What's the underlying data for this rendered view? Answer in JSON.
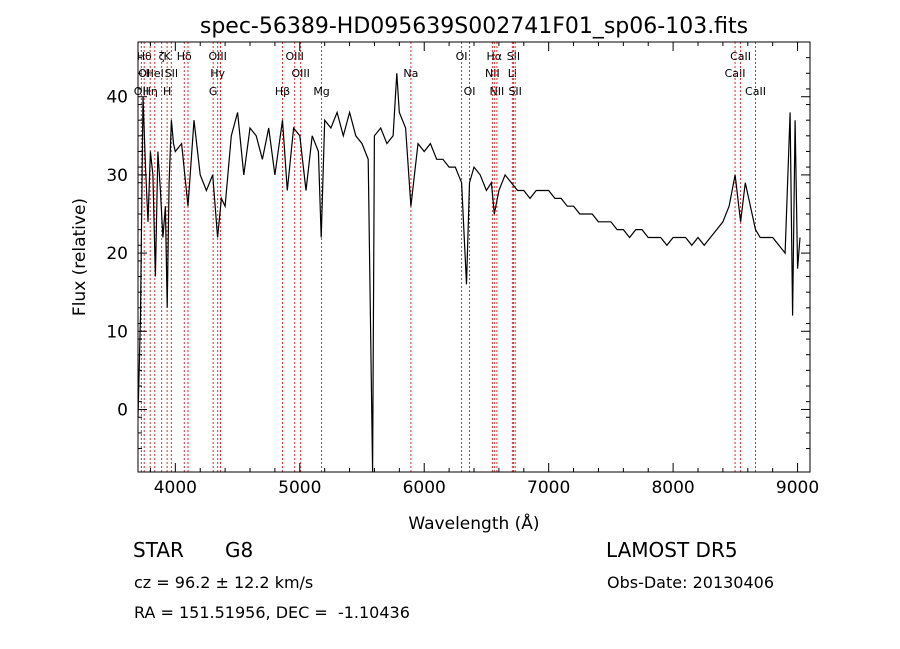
{
  "chart_data": {
    "type": "line",
    "title": "spec-56389-HD095639S002741F01_sp06-103.fits",
    "xlabel": "Wavelength (Å)",
    "ylabel": "Flux (relative)",
    "xlim": [
      3700,
      9100
    ],
    "ylim": [
      -8,
      47
    ],
    "x_ticks": [
      4000,
      5000,
      6000,
      7000,
      8000,
      9000
    ],
    "y_ticks": [
      0,
      10,
      20,
      30,
      40
    ],
    "grid": false,
    "series": [
      {
        "x": [
          3700,
          3720,
          3740,
          3760,
          3780,
          3800,
          3820,
          3840,
          3860,
          3880,
          3900,
          3920,
          3935,
          3950,
          3968,
          3985,
          4000,
          4050,
          4102,
          4150,
          4200,
          4250,
          4300,
          4340,
          4370,
          4400,
          4450,
          4500,
          4550,
          4600,
          4650,
          4700,
          4750,
          4800,
          4861,
          4900,
          4950,
          5000,
          5050,
          5100,
          5150,
          5172,
          5200,
          5250,
          5300,
          5350,
          5400,
          5450,
          5500,
          5550,
          5585,
          5600,
          5650,
          5700,
          5750,
          5780,
          5800,
          5850,
          5893,
          5950,
          6000,
          6050,
          6100,
          6150,
          6200,
          6250,
          6300,
          6340,
          6364,
          6400,
          6450,
          6500,
          6540,
          6563,
          6600,
          6650,
          6700,
          6750,
          6800,
          6850,
          6900,
          6950,
          7000,
          7050,
          7100,
          7150,
          7200,
          7250,
          7300,
          7350,
          7400,
          7450,
          7500,
          7550,
          7600,
          7650,
          7700,
          7750,
          7800,
          7850,
          7900,
          7950,
          8000,
          8050,
          8100,
          8150,
          8200,
          8250,
          8300,
          8350,
          8400,
          8450,
          8498,
          8542,
          8580,
          8662,
          8700,
          8750,
          8800,
          8850,
          8900,
          8940,
          8960,
          8980,
          9000,
          9020
        ],
        "y": [
          -1,
          12,
          40,
          31,
          24,
          33,
          30,
          17,
          33,
          28,
          22,
          26,
          13,
          29,
          37,
          34,
          33,
          34,
          26,
          37,
          30,
          28,
          30,
          22,
          27,
          26,
          35,
          38,
          30,
          36,
          35,
          32,
          36,
          30,
          37,
          28,
          36,
          35,
          28,
          35,
          33,
          22,
          37,
          36,
          38,
          35,
          38,
          35,
          34,
          32,
          -8,
          35,
          36,
          34,
          35,
          43,
          38,
          36,
          26,
          34,
          33,
          34,
          32,
          32,
          31,
          31,
          29,
          16,
          29,
          31,
          30,
          28,
          29,
          25,
          28,
          30,
          29,
          28,
          28,
          27,
          28,
          28,
          28,
          27,
          27,
          26,
          26,
          25,
          25,
          25,
          24,
          24,
          24,
          23,
          23,
          22,
          23,
          23,
          22,
          22,
          22,
          21,
          22,
          22,
          22,
          21,
          22,
          21,
          22,
          23,
          24,
          26,
          30,
          24,
          29,
          23,
          22,
          22,
          22,
          21,
          20,
          38,
          12,
          37,
          18,
          22
        ]
      }
    ],
    "line_annotations": [
      {
        "wave": 3727,
        "labels": [
          {
            "text": "OII",
            "row": 2
          }
        ]
      },
      {
        "wave": 3750,
        "labels": [
          {
            "text": "Hθ",
            "row": 0
          },
          {
            "text": "OI",
            "row": 1
          }
        ]
      },
      {
        "wave": 3798,
        "labels": [
          {
            "text": "Hη",
            "row": 2
          }
        ]
      },
      {
        "wave": 3835,
        "labels": [
          {
            "text": "HeI",
            "row": 1
          }
        ]
      },
      {
        "wave": 3890,
        "labels": [
          {
            "text": "ζ",
            "row": 0
          }
        ]
      },
      {
        "wave": 3934,
        "labels": [
          {
            "text": "K",
            "row": 0
          },
          {
            "text": "H",
            "row": 2
          }
        ]
      },
      {
        "wave": 3968,
        "labels": [
          {
            "text": "SII",
            "row": 1
          }
        ]
      },
      {
        "wave": 4072,
        "labels": [
          {
            "text": "Hδ",
            "row": 0
          }
        ]
      },
      {
        "wave": 4102,
        "labels": []
      },
      {
        "wave": 4304,
        "labels": [
          {
            "text": "G",
            "row": 2
          }
        ]
      },
      {
        "wave": 4340,
        "labels": [
          {
            "text": "OIII",
            "row": 0
          },
          {
            "text": "Hγ",
            "row": 1
          }
        ]
      },
      {
        "wave": 4363,
        "labels": []
      },
      {
        "wave": 4861,
        "labels": [
          {
            "text": "Hβ",
            "row": 2
          }
        ]
      },
      {
        "wave": 4959,
        "labels": [
          {
            "text": "OIII",
            "row": 0
          }
        ]
      },
      {
        "wave": 5007,
        "labels": [
          {
            "text": "OIII",
            "row": 1
          }
        ]
      },
      {
        "wave": 5175,
        "labels": [
          {
            "text": "Mg",
            "row": 2
          }
        ]
      },
      {
        "wave": 5893,
        "labels": [
          {
            "text": "Na",
            "row": 1
          }
        ]
      },
      {
        "wave": 6300,
        "labels": [
          {
            "text": "OI",
            "row": 0
          }
        ]
      },
      {
        "wave": 6364,
        "labels": [
          {
            "text": "OI",
            "row": 2
          }
        ]
      },
      {
        "wave": 6548,
        "labels": [
          {
            "text": "NII",
            "row": 1
          }
        ]
      },
      {
        "wave": 6563,
        "labels": [
          {
            "text": "Hα",
            "row": 0
          }
        ]
      },
      {
        "wave": 6584,
        "labels": [
          {
            "text": "NII",
            "row": 2
          }
        ]
      },
      {
        "wave": 6708,
        "labels": [
          {
            "text": "Li",
            "row": 1
          }
        ]
      },
      {
        "wave": 6717,
        "labels": [
          {
            "text": "SII",
            "row": 0
          }
        ]
      },
      {
        "wave": 6731,
        "labels": [
          {
            "text": "SII",
            "row": 2
          }
        ]
      },
      {
        "wave": 8498,
        "labels": [
          {
            "text": "CaII",
            "row": 1
          }
        ]
      },
      {
        "wave": 8542,
        "labels": [
          {
            "text": "CaII",
            "row": 0
          }
        ]
      },
      {
        "wave": 8662,
        "labels": [
          {
            "text": "CaII",
            "row": 2
          }
        ]
      }
    ],
    "line_color": "#000000",
    "annotation_color": "#cc3333"
  },
  "footer": {
    "object_type": "STAR",
    "subclass": "G8",
    "redshift": "cz = 96.2 ± 12.2 km/s",
    "coords": "RA = 151.51956, DEC =  -1.10436",
    "survey": "LAMOST DR5",
    "obs_date": "Obs-Date: 20130406"
  }
}
